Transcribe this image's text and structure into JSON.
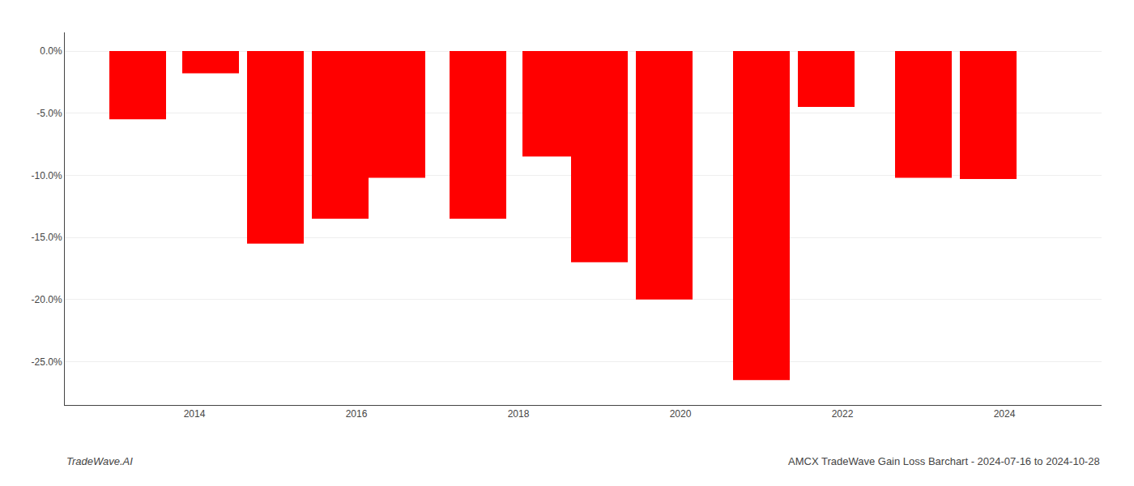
{
  "chart_data": {
    "type": "bar",
    "x": [
      2013.3,
      2014.2,
      2015.0,
      2015.8,
      2016.5,
      2017.5,
      2018.4,
      2019.0,
      2019.8,
      2021.0,
      2021.8,
      2023.0,
      2023.8
    ],
    "values": [
      -5.5,
      -1.8,
      -15.5,
      -13.5,
      -10.2,
      -13.5,
      -8.5,
      -17.0,
      -20.0,
      -26.5,
      -4.5,
      -10.2,
      -10.3
    ],
    "color": "#ff0000",
    "xlim": [
      2012.4,
      2025.2
    ],
    "xticks": [
      2014,
      2016,
      2018,
      2020,
      2022,
      2024
    ],
    "ylim": [
      -28.5,
      1.5
    ],
    "yticks": [
      {
        "value": 0,
        "label": "0.0%"
      },
      {
        "value": -5,
        "label": "-5.0%"
      },
      {
        "value": -10,
        "label": "-10.0%"
      },
      {
        "value": -15,
        "label": "-15.0%"
      },
      {
        "value": -20,
        "label": "-20.0%"
      },
      {
        "value": -25,
        "label": "-25.0%"
      }
    ],
    "grid": true,
    "annotations": [
      "TradeWave.AI",
      "AMCX TradeWave Gain Loss Barchart - 2024-07-16 to 2024-10-28"
    ]
  }
}
